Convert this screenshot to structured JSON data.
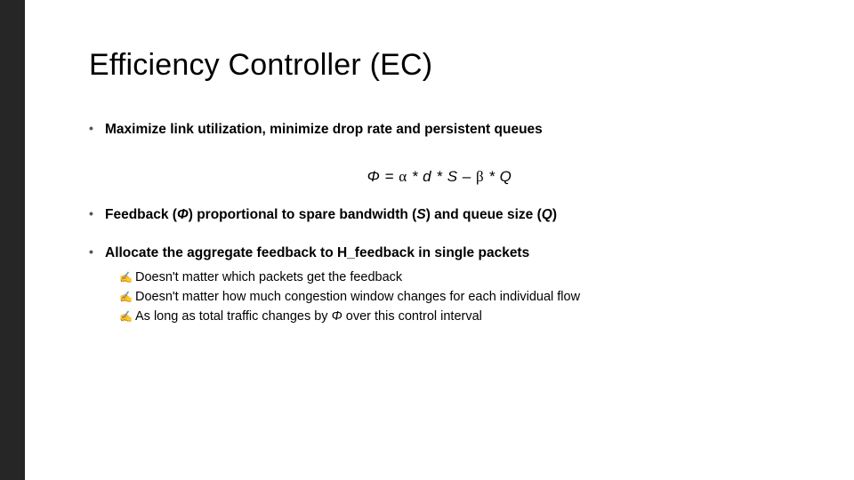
{
  "title": "Efficiency Controller (EC)",
  "bullet1": "Maximize link utilization, minimize drop rate and persistent queues",
  "formula": {
    "phi": "Φ",
    "eq": " = ",
    "alpha": "α",
    "mid1": " * d * S – ",
    "beta": "β",
    "mid2": " * Q"
  },
  "bullet2": {
    "pre": "Feedback (",
    "phi": "Φ",
    "mid1": ") proportional to spare bandwidth  (",
    "S": "S",
    "mid2": ") and queue size (",
    "Q": "Q",
    "post": ")"
  },
  "bullet3": "Allocate the aggregate feedback to H_feedback in single packets",
  "sub1": "Doesn't matter which packets get the feedback",
  "sub2": "Doesn't matter how much congestion window changes for each individual flow",
  "sub3_pre": "As long as total traffic changes by ",
  "sub3_phi": "Φ",
  "sub3_post": " over this control interval",
  "colors": {
    "background_dark": "#262626",
    "slide_bg": "#ffffff",
    "text": "#000000"
  }
}
